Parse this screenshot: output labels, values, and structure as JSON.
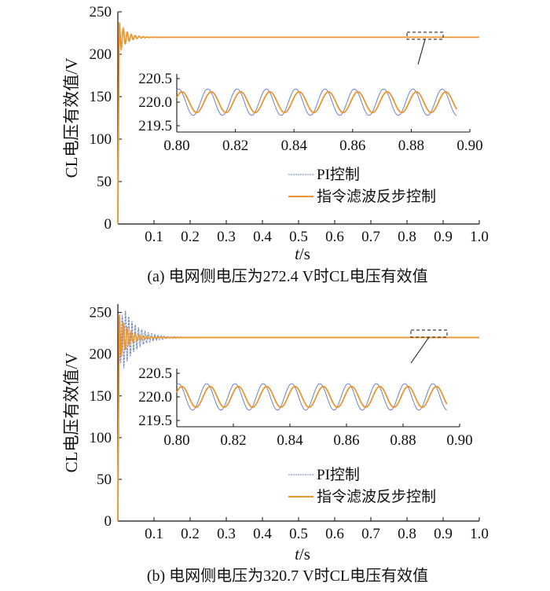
{
  "colors": {
    "pi": "#6a82c8",
    "proposed": "#f0952a",
    "axis": "#111111"
  },
  "legend": {
    "pi": "PI控制",
    "proposed": "指令滤波反步控制"
  },
  "chart_data": [
    {
      "type": "line",
      "panel": "a",
      "caption": "(a)  电网侧电压为272.4 V时CL电压有效值",
      "ylabel": "CL电压有效值/V",
      "xlabel": "t/s",
      "xlim": [
        0,
        1.0
      ],
      "ylim": [
        0,
        250
      ],
      "xticks": [
        "0.1",
        "0.2",
        "0.3",
        "0.4",
        "0.5",
        "0.6",
        "0.7",
        "0.8",
        "0.9",
        "1.0"
      ],
      "yticks": [
        "0",
        "50",
        "100",
        "150",
        "200",
        "250"
      ],
      "legend": "right-middle",
      "series": [
        {
          "name": "PI控制",
          "steady": 220.0,
          "peak": 236,
          "settle_time": 0.08
        },
        {
          "name": "指令滤波反步控制",
          "steady": 220.0,
          "peak": 238,
          "settle_time": 0.08
        }
      ],
      "inset": {
        "xlim": [
          0.8,
          0.9
        ],
        "ylim": [
          219.5,
          220.5
        ],
        "xticks": [
          "0.80",
          "0.82",
          "0.84",
          "0.86",
          "0.88",
          "0.90"
        ],
        "yticks": [
          "219.5",
          "220.0",
          "220.5"
        ],
        "period": 0.01,
        "series": [
          {
            "name": "PI控制",
            "amplitude": 0.28,
            "phase": 0.0
          },
          {
            "name": "指令滤波反步控制",
            "amplitude": 0.22,
            "phase": 0.0012
          }
        ]
      }
    },
    {
      "type": "line",
      "panel": "b",
      "caption": "(b)  电网侧电压为320.7 V时CL电压有效值",
      "ylabel": "CL电压有效值/V",
      "xlabel": "t/s",
      "xlim": [
        0,
        1.0
      ],
      "ylim": [
        0,
        260
      ],
      "xticks": [
        "0.1",
        "0.2",
        "0.3",
        "0.4",
        "0.5",
        "0.6",
        "0.7",
        "0.8",
        "0.9",
        "1.0"
      ],
      "yticks": [
        "0",
        "50",
        "100",
        "150",
        "200",
        "250"
      ],
      "legend": "right-middle",
      "series": [
        {
          "name": "PI控制",
          "steady": 220.0,
          "peak": 255,
          "settle_time": 0.12
        },
        {
          "name": "指令滤波反步控制",
          "steady": 220.0,
          "peak": 248,
          "settle_time": 0.1
        }
      ],
      "inset": {
        "xlim": [
          0.8,
          0.9
        ],
        "ylim": [
          219.5,
          220.5
        ],
        "xticks": [
          "0.80",
          "0.82",
          "0.84",
          "0.86",
          "0.88",
          "0.90"
        ],
        "yticks": [
          "219.5",
          "220.0",
          "220.5"
        ],
        "period": 0.01,
        "series": [
          {
            "name": "PI控制",
            "amplitude": 0.28,
            "phase": 0.0
          },
          {
            "name": "指令滤波反步控制",
            "amplitude": 0.22,
            "phase": 0.0012
          }
        ]
      }
    }
  ]
}
